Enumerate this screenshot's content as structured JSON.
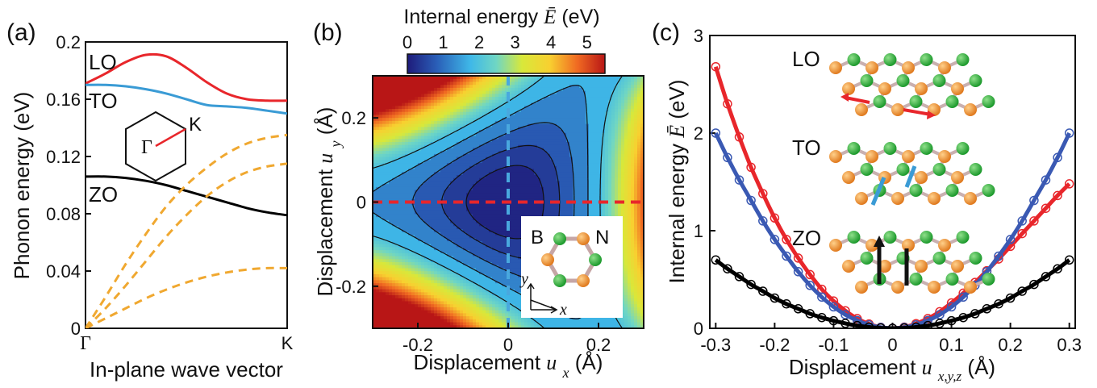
{
  "panels": [
    {
      "label": "(a)"
    },
    {
      "label": "(b)"
    },
    {
      "label": "(c)"
    }
  ],
  "chart_data": [
    {
      "type": "line",
      "panel": "(a)",
      "xlabel": "In-plane wave vector",
      "ylabel": "Phonon energy (eV)",
      "x_ticks": [
        "Γ",
        "K"
      ],
      "y_ticks": [
        "0",
        "0.04",
        "0.08",
        "0.12",
        "0.16",
        "0.2"
      ],
      "ylim": [
        0,
        0.2
      ],
      "x": [
        0,
        0.1,
        0.2,
        0.3,
        0.4,
        0.5,
        0.6,
        0.7,
        0.8,
        0.9,
        1.0
      ],
      "series": [
        {
          "name": "LO",
          "color": "#e8262b",
          "style": "solid",
          "values": [
            0.171,
            0.178,
            0.186,
            0.191,
            0.19,
            0.182,
            0.172,
            0.164,
            0.16,
            0.159,
            0.159
          ]
        },
        {
          "name": "TO",
          "color": "#3a9bd5",
          "style": "solid",
          "values": [
            0.17,
            0.17,
            0.169,
            0.167,
            0.164,
            0.16,
            0.156,
            0.155,
            0.154,
            0.152,
            0.15
          ]
        },
        {
          "name": "ZO",
          "color": "#000000",
          "style": "solid",
          "values": [
            0.106,
            0.106,
            0.105,
            0.103,
            0.1,
            0.096,
            0.092,
            0.088,
            0.084,
            0.081,
            0.079
          ]
        },
        {
          "name": "",
          "color": "#f0a830",
          "style": "dashed",
          "values": [
            0.0,
            0.022,
            0.045,
            0.066,
            0.085,
            0.1,
            0.112,
            0.122,
            0.129,
            0.133,
            0.135
          ]
        },
        {
          "name": "",
          "color": "#f0a830",
          "style": "dashed",
          "values": [
            0.0,
            0.014,
            0.03,
            0.047,
            0.064,
            0.079,
            0.092,
            0.102,
            0.109,
            0.113,
            0.115
          ]
        },
        {
          "name": "",
          "color": "#f0a830",
          "style": "dashed",
          "values": [
            0.0,
            0.007,
            0.014,
            0.021,
            0.027,
            0.032,
            0.036,
            0.039,
            0.041,
            0.042,
            0.042
          ]
        }
      ],
      "inset": {
        "labels": [
          "Γ",
          "K"
        ]
      }
    },
    {
      "type": "heatmap",
      "panel": "(b)",
      "colorbar_title": "Internal energy",
      "colorbar_symbol": "Ē",
      "colorbar_unit": "(eV)",
      "colorbar_ticks": [
        "0",
        "1",
        "2",
        "3",
        "4",
        "5"
      ],
      "colorbar_range": [
        0,
        5.5
      ],
      "xlabel_prefix": "Displacement",
      "xlabel_symbol": "u",
      "xlabel_sub": "x",
      "xlabel_unit": "(Å)",
      "ylabel_prefix": "Displacement",
      "ylabel_symbol": "u",
      "ylabel_sub": "y",
      "ylabel_unit": "(Å)",
      "x_ticks": [
        "-0.2",
        "0",
        "0.2"
      ],
      "x_tick_values": [
        -0.2,
        0,
        0.2
      ],
      "y_ticks": [
        "-0.2",
        "0",
        "0.2"
      ],
      "y_tick_values": [
        -0.2,
        0,
        0.2
      ],
      "xlim": [
        -0.3,
        0.3
      ],
      "ylim": [
        -0.3,
        0.3
      ],
      "contour_levels": [
        0.25,
        0.55,
        0.95,
        1.45,
        2.0
      ],
      "dashed_lines": [
        {
          "orientation": "horizontal",
          "value": 0,
          "color": "#e8262b"
        },
        {
          "orientation": "vertical",
          "value": 0,
          "color": "#49a8de"
        }
      ],
      "inset": {
        "atoms": [
          "B",
          "N"
        ],
        "axes": [
          "x",
          "y"
        ]
      }
    },
    {
      "type": "scatter",
      "panel": "(c)",
      "ylabel": "Internal energy",
      "ylabel_symbol": "Ē",
      "ylabel_unit": "(eV)",
      "xlabel_prefix": "Displacement",
      "xlabel_symbol": "u",
      "xlabel_sub": "x,y,z",
      "xlabel_unit": "(Å)",
      "x_ticks": [
        "-0.3",
        "-0.2",
        "-0.1",
        "0",
        "0.1",
        "0.2",
        "0.3"
      ],
      "x_tick_values": [
        -0.3,
        -0.2,
        -0.1,
        0,
        0.1,
        0.2,
        0.3
      ],
      "y_ticks": [
        "0",
        "1",
        "2",
        "3"
      ],
      "y_tick_values": [
        0,
        1,
        2,
        3
      ],
      "xlim": [
        -0.31,
        0.31
      ],
      "ylim": [
        0,
        3
      ],
      "series": [
        {
          "name": "LO",
          "color": "#e8262b",
          "fit": [
            29.5,
            0.0,
            0.018
          ],
          "points": [
            [
              -0.3,
              2.68
            ],
            [
              -0.28,
              2.3
            ],
            [
              -0.26,
              1.96
            ],
            [
              -0.24,
              1.65
            ],
            [
              -0.22,
              1.38
            ],
            [
              -0.2,
              1.13
            ],
            [
              -0.18,
              0.91
            ],
            [
              -0.16,
              0.72
            ],
            [
              -0.14,
              0.55
            ],
            [
              -0.12,
              0.4
            ],
            [
              -0.1,
              0.28
            ],
            [
              -0.08,
              0.18
            ],
            [
              -0.06,
              0.1
            ],
            [
              -0.04,
              0.045
            ],
            [
              -0.02,
              0.01
            ],
            [
              0,
              0.0
            ],
            [
              0.02,
              0.012
            ],
            [
              0.04,
              0.048
            ],
            [
              0.06,
              0.1
            ],
            [
              0.08,
              0.17
            ],
            [
              0.1,
              0.26
            ],
            [
              0.12,
              0.36
            ],
            [
              0.14,
              0.47
            ],
            [
              0.16,
              0.59
            ],
            [
              0.18,
              0.71
            ],
            [
              0.2,
              0.84
            ],
            [
              0.22,
              0.97
            ],
            [
              0.24,
              1.1
            ],
            [
              0.26,
              1.23
            ],
            [
              0.28,
              1.36
            ],
            [
              0.3,
              1.48
            ]
          ]
        },
        {
          "name": "TO",
          "color": "#3a59b3",
          "fit": [
            22.6,
            0.0,
            0.0
          ],
          "points": [
            [
              -0.3,
              2.0
            ],
            [
              -0.28,
              1.75
            ],
            [
              -0.26,
              1.52
            ],
            [
              -0.24,
              1.31
            ],
            [
              -0.22,
              1.1
            ],
            [
              -0.2,
              0.91
            ],
            [
              -0.18,
              0.74
            ],
            [
              -0.16,
              0.58
            ],
            [
              -0.14,
              0.44
            ],
            [
              -0.12,
              0.32
            ],
            [
              -0.1,
              0.22
            ],
            [
              -0.08,
              0.14
            ],
            [
              -0.06,
              0.08
            ],
            [
              -0.04,
              0.035
            ],
            [
              -0.02,
              0.009
            ],
            [
              0,
              0.0
            ],
            [
              0.02,
              0.009
            ],
            [
              0.04,
              0.035
            ],
            [
              0.06,
              0.08
            ],
            [
              0.08,
              0.14
            ],
            [
              0.1,
              0.22
            ],
            [
              0.12,
              0.32
            ],
            [
              0.14,
              0.44
            ],
            [
              0.16,
              0.58
            ],
            [
              0.18,
              0.74
            ],
            [
              0.2,
              0.91
            ],
            [
              0.22,
              1.1
            ],
            [
              0.24,
              1.31
            ],
            [
              0.26,
              1.52
            ],
            [
              0.28,
              1.75
            ],
            [
              0.3,
              2.0
            ]
          ]
        },
        {
          "name": "ZO",
          "color": "#000000",
          "fit": [
            7.8,
            0.0,
            0.0
          ],
          "points": [
            [
              -0.3,
              0.7
            ],
            [
              -0.28,
              0.61
            ],
            [
              -0.26,
              0.53
            ],
            [
              -0.24,
              0.45
            ],
            [
              -0.22,
              0.38
            ],
            [
              -0.2,
              0.31
            ],
            [
              -0.18,
              0.25
            ],
            [
              -0.16,
              0.2
            ],
            [
              -0.14,
              0.15
            ],
            [
              -0.12,
              0.11
            ],
            [
              -0.1,
              0.078
            ],
            [
              -0.08,
              0.05
            ],
            [
              -0.06,
              0.028
            ],
            [
              -0.04,
              0.012
            ],
            [
              -0.02,
              0.003
            ],
            [
              0,
              0.0
            ],
            [
              0.02,
              0.003
            ],
            [
              0.04,
              0.012
            ],
            [
              0.06,
              0.028
            ],
            [
              0.08,
              0.05
            ],
            [
              0.1,
              0.078
            ],
            [
              0.12,
              0.11
            ],
            [
              0.14,
              0.15
            ],
            [
              0.16,
              0.2
            ],
            [
              0.18,
              0.25
            ],
            [
              0.2,
              0.31
            ],
            [
              0.22,
              0.38
            ],
            [
              0.24,
              0.45
            ],
            [
              0.26,
              0.53
            ],
            [
              0.28,
              0.61
            ],
            [
              0.3,
              0.7
            ]
          ]
        }
      ]
    }
  ]
}
